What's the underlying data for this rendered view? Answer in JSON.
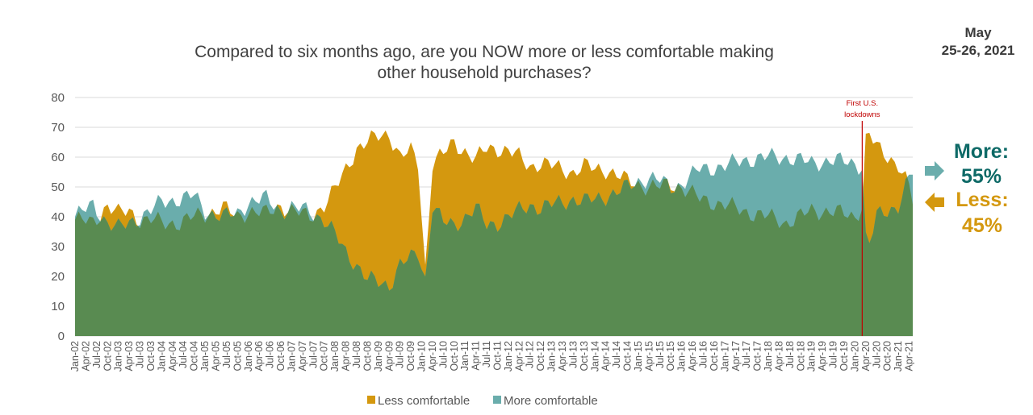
{
  "chart_data": {
    "type": "area",
    "title_line1": "Compared to six months ago, are you NOW more or less comfortable making",
    "title_line2": "other household purchases?",
    "survey_date_line1": "May",
    "survey_date_line2": "25-26, 2021",
    "ylim": [
      0,
      80
    ],
    "yticks": [
      "0",
      "10",
      "20",
      "30",
      "40",
      "50",
      "60",
      "70",
      "80"
    ],
    "grid": true,
    "legend_position": "bottom",
    "colors": {
      "less": "#d4980f",
      "more": "#6aadac",
      "overlap": "#598b51",
      "lockdown_line": "#c00000",
      "more_callout": "#0e6a67",
      "less_callout": "#d4980f",
      "arrow_more": "#6aadac",
      "arrow_less": "#d4980f"
    },
    "x_start": "2002-01",
    "x_end": "2021-05",
    "x_tick_labels": [
      "Jan-02",
      "Apr-02",
      "Jul-02",
      "Oct-02",
      "Jan-03",
      "Apr-03",
      "Jul-03",
      "Oct-03",
      "Jan-04",
      "Apr-04",
      "Jul-04",
      "Oct-04",
      "Jan-05",
      "Apr-05",
      "Jul-05",
      "Oct-05",
      "Jan-06",
      "Apr-06",
      "Jul-06",
      "Oct-06",
      "Jan-07",
      "Apr-07",
      "Jul-07",
      "Oct-07",
      "Jan-08",
      "Apr-08",
      "Jul-08",
      "Oct-08",
      "Jan-09",
      "Apr-09",
      "Jul-09",
      "Oct-09",
      "Jan-10",
      "Apr-10",
      "Jul-10",
      "Oct-10",
      "Jan-11",
      "Apr-11",
      "Jul-11",
      "Oct-11",
      "Jan-12",
      "Apr-12",
      "Jul-12",
      "Oct-12",
      "Jan-13",
      "Apr-13",
      "Jul-13",
      "Oct-13",
      "Jan-14",
      "Apr-14",
      "Jul-14",
      "Oct-14",
      "Jan-15",
      "Apr-15",
      "Jul-15",
      "Oct-15",
      "Jan-16",
      "Apr-16",
      "Jul-16",
      "Oct-16",
      "Jan-17",
      "Apr-17",
      "Jul-17",
      "Oct-17",
      "Jan-18",
      "Apr-18",
      "Jul-18",
      "Oct-18",
      "Jan-19",
      "Apr-19",
      "Jul-19",
      "Oct-19",
      "Jan-20",
      "Apr-20",
      "Jul-20",
      "Oct-20",
      "Jan-21",
      "Apr-21"
    ],
    "series": [
      {
        "name": "Less comfortable",
        "key": "less",
        "points": [
          [
            "2002-01",
            39
          ],
          [
            "2002-06",
            38
          ],
          [
            "2002-10",
            44
          ],
          [
            "2003-01",
            41
          ],
          [
            "2003-04",
            42
          ],
          [
            "2003-07",
            39
          ],
          [
            "2003-10",
            39
          ],
          [
            "2004-01",
            38
          ],
          [
            "2004-06",
            38
          ],
          [
            "2004-10",
            40
          ],
          [
            "2005-01",
            41
          ],
          [
            "2005-06",
            43
          ],
          [
            "2005-10",
            40
          ],
          [
            "2006-01",
            42
          ],
          [
            "2006-06",
            41
          ],
          [
            "2006-10",
            44
          ],
          [
            "2007-01",
            42
          ],
          [
            "2007-06",
            40
          ],
          [
            "2007-10",
            44
          ],
          [
            "2008-01",
            49
          ],
          [
            "2008-04",
            56
          ],
          [
            "2008-07",
            63
          ],
          [
            "2008-10",
            65
          ],
          [
            "2009-01",
            67
          ],
          [
            "2009-04",
            68
          ],
          [
            "2009-07",
            60
          ],
          [
            "2009-10",
            62
          ],
          [
            "2009-12",
            58
          ],
          [
            "2010-02",
            23
          ],
          [
            "2010-04",
            58
          ],
          [
            "2010-07",
            61
          ],
          [
            "2010-10",
            65
          ],
          [
            "2011-01",
            62
          ],
          [
            "2011-04",
            59
          ],
          [
            "2011-07",
            63
          ],
          [
            "2011-10",
            63
          ],
          [
            "2012-01",
            62
          ],
          [
            "2012-04",
            60
          ],
          [
            "2012-07",
            57
          ],
          [
            "2012-10",
            58
          ],
          [
            "2013-01",
            57
          ],
          [
            "2013-04",
            56
          ],
          [
            "2013-07",
            55
          ],
          [
            "2013-10",
            57
          ],
          [
            "2014-01",
            56
          ],
          [
            "2014-04",
            56
          ],
          [
            "2014-07",
            54
          ],
          [
            "2014-10",
            52
          ],
          [
            "2015-01",
            51
          ],
          [
            "2015-04",
            50
          ],
          [
            "2015-07",
            50
          ],
          [
            "2015-10",
            51
          ],
          [
            "2016-01",
            50
          ],
          [
            "2016-06",
            46
          ],
          [
            "2017-01",
            44
          ],
          [
            "2017-06",
            42
          ],
          [
            "2018-01",
            40
          ],
          [
            "2018-06",
            38
          ],
          [
            "2019-01",
            42
          ],
          [
            "2019-06",
            42
          ],
          [
            "2020-01",
            40
          ],
          [
            "2020-03",
            44
          ],
          [
            "2020-04",
            66
          ],
          [
            "2020-05",
            68
          ],
          [
            "2020-07",
            63
          ],
          [
            "2020-10",
            60
          ],
          [
            "2021-01",
            58
          ],
          [
            "2021-04",
            50
          ],
          [
            "2021-05",
            45
          ]
        ]
      },
      {
        "name": "More comfortable",
        "key": "more",
        "points": [
          [
            "2002-01",
            40
          ],
          [
            "2002-06",
            44
          ],
          [
            "2002-10",
            38
          ],
          [
            "2003-01",
            36
          ],
          [
            "2003-04",
            38
          ],
          [
            "2003-07",
            40
          ],
          [
            "2003-10",
            42
          ],
          [
            "2004-01",
            45
          ],
          [
            "2004-06",
            46
          ],
          [
            "2004-10",
            47
          ],
          [
            "2005-01",
            42
          ],
          [
            "2005-06",
            40
          ],
          [
            "2005-10",
            41
          ],
          [
            "2006-01",
            45
          ],
          [
            "2006-06",
            46
          ],
          [
            "2006-10",
            42
          ],
          [
            "2007-01",
            43
          ],
          [
            "2007-06",
            42
          ],
          [
            "2007-10",
            39
          ],
          [
            "2008-01",
            34
          ],
          [
            "2008-04",
            28
          ],
          [
            "2008-07",
            24
          ],
          [
            "2008-10",
            19
          ],
          [
            "2009-01",
            18
          ],
          [
            "2009-04",
            17
          ],
          [
            "2009-07",
            24
          ],
          [
            "2009-10",
            26
          ],
          [
            "2009-12",
            28
          ],
          [
            "2010-02",
            19
          ],
          [
            "2010-04",
            44
          ],
          [
            "2010-07",
            38
          ],
          [
            "2010-10",
            37
          ],
          [
            "2011-01",
            40
          ],
          [
            "2011-04",
            43
          ],
          [
            "2011-07",
            37
          ],
          [
            "2011-10",
            38
          ],
          [
            "2012-01",
            40
          ],
          [
            "2012-04",
            42
          ],
          [
            "2012-07",
            44
          ],
          [
            "2012-10",
            43
          ],
          [
            "2013-01",
            44
          ],
          [
            "2013-04",
            45
          ],
          [
            "2013-07",
            46
          ],
          [
            "2013-10",
            45
          ],
          [
            "2014-01",
            46
          ],
          [
            "2014-04",
            47
          ],
          [
            "2014-07",
            48
          ],
          [
            "2014-10",
            50
          ],
          [
            "2015-01",
            52
          ],
          [
            "2015-04",
            53
          ],
          [
            "2015-07",
            52
          ],
          [
            "2015-10",
            50
          ],
          [
            "2016-01",
            51
          ],
          [
            "2016-06",
            56
          ],
          [
            "2017-01",
            57
          ],
          [
            "2017-06",
            59
          ],
          [
            "2018-01",
            60
          ],
          [
            "2018-06",
            60
          ],
          [
            "2019-01",
            58
          ],
          [
            "2019-06",
            59
          ],
          [
            "2020-01",
            58
          ],
          [
            "2020-03",
            57
          ],
          [
            "2020-04",
            33
          ],
          [
            "2020-05",
            31
          ],
          [
            "2020-07",
            40
          ],
          [
            "2020-10",
            42
          ],
          [
            "2021-01",
            44
          ],
          [
            "2021-04",
            53
          ],
          [
            "2021-05",
            55
          ]
        ]
      }
    ],
    "legend": [
      {
        "key": "less",
        "label": "Less comfortable"
      },
      {
        "key": "more",
        "label": "More comfortable"
      }
    ],
    "annotation": {
      "x": "2020-03",
      "text_line1": "First U.S.",
      "text_line2": "lockdowns"
    },
    "callouts": {
      "more_label": "More:",
      "more_value": "55%",
      "less_label": "Less:",
      "less_value": "45%"
    }
  }
}
